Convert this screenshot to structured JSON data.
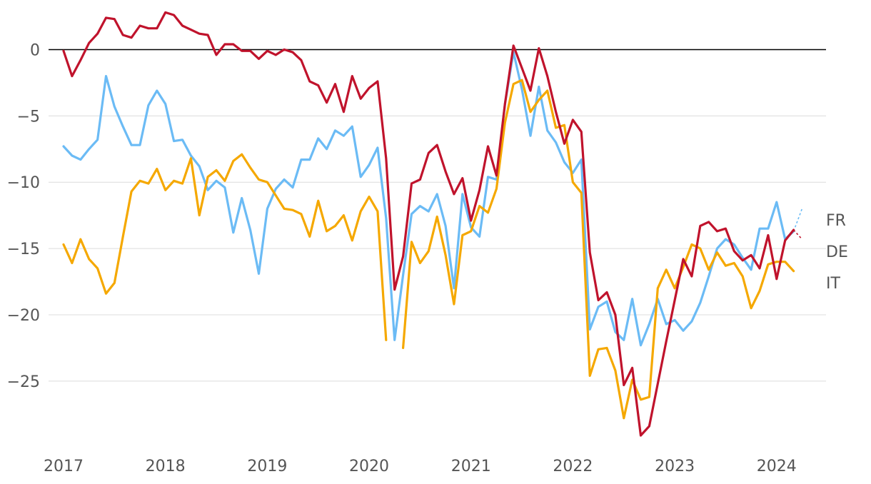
{
  "chart_data": {
    "type": "line",
    "title": "",
    "xlabel": "",
    "ylabel": "",
    "xlim": [
      2017.0,
      2024.42
    ],
    "ylim": [
      -29.8,
      3.2
    ],
    "grid": true,
    "legend": "end-of-line labels",
    "x_ticks": [
      {
        "value": 2017,
        "label": "2017"
      },
      {
        "value": 2018,
        "label": "2018"
      },
      {
        "value": 2019,
        "label": "2019"
      },
      {
        "value": 2020,
        "label": "2020"
      },
      {
        "value": 2021,
        "label": "2021"
      },
      {
        "value": 2022,
        "label": "2022"
      },
      {
        "value": 2023,
        "label": "2023"
      },
      {
        "value": 2024,
        "label": "2024"
      }
    ],
    "y_ticks": [
      {
        "value": 0,
        "label": "0"
      },
      {
        "value": -5,
        "label": "−5"
      },
      {
        "value": -10,
        "label": "−10"
      },
      {
        "value": -15,
        "label": "−15"
      },
      {
        "value": -20,
        "label": "−20"
      },
      {
        "value": -25,
        "label": "−25"
      }
    ],
    "x_start": "2017-01",
    "x_step_months": 1,
    "series": [
      {
        "name": "FR",
        "color": "#6bbbf5",
        "values": [
          -7.3,
          -8.0,
          -8.3,
          -7.5,
          -6.8,
          -2.0,
          -4.3,
          -5.8,
          -7.2,
          -7.2,
          -4.2,
          -3.1,
          -4.1,
          -6.9,
          -6.8,
          -8.0,
          -8.8,
          -10.6,
          -9.9,
          -10.4,
          -13.8,
          -11.2,
          -13.6,
          -16.9,
          -12.0,
          -10.5,
          -9.8,
          -10.4,
          -8.3,
          -8.3,
          -6.7,
          -7.5,
          -6.1,
          -6.5,
          -5.8,
          -9.6,
          -8.7,
          -7.4,
          -12.7,
          -21.9,
          -17.0,
          -12.4,
          -11.8,
          -12.2,
          -10.9,
          -13.3,
          -18.0,
          -10.9,
          -13.4,
          -14.1,
          -9.6,
          -9.8,
          -4.1,
          -0.2,
          -3.0,
          -6.5,
          -2.8,
          -6.1,
          -7.0,
          -8.5,
          -9.3,
          -8.3,
          -21.1,
          -19.4,
          -19.0,
          -21.3,
          -21.9,
          -18.8,
          -22.3,
          -20.7,
          -18.8,
          -20.7,
          -20.4,
          -21.2,
          -20.5,
          -19.1,
          -17.1,
          -15.0,
          -14.3,
          -14.7,
          -15.7,
          -16.6,
          -13.5,
          -13.5,
          -11.5,
          -14.3,
          -13.7
        ],
        "projection": [
          -13.7,
          -12.0
        ]
      },
      {
        "name": "DE",
        "color": "#c0132c",
        "values": [
          -0.1,
          -2.0,
          -0.8,
          0.5,
          1.2,
          2.4,
          2.3,
          1.1,
          0.9,
          1.8,
          1.6,
          1.6,
          2.8,
          2.6,
          1.8,
          1.5,
          1.2,
          1.1,
          -0.4,
          0.4,
          0.4,
          -0.1,
          -0.1,
          -0.7,
          -0.1,
          -0.4,
          0.0,
          -0.2,
          -0.8,
          -2.4,
          -2.7,
          -4.0,
          -2.6,
          -4.7,
          -2.0,
          -3.7,
          -2.9,
          -2.4,
          -8.2,
          -18.1,
          -15.6,
          -10.1,
          -9.8,
          -7.8,
          -7.2,
          -9.2,
          -10.9,
          -9.7,
          -12.9,
          -10.6,
          -7.3,
          -9.5,
          -4.1,
          0.3,
          -1.4,
          -3.1,
          0.1,
          -2.0,
          -4.7,
          -7.1,
          -5.3,
          -6.2,
          -15.3,
          -18.9,
          -18.3,
          -20.0,
          -25.3,
          -24.0,
          -29.1,
          -28.4,
          -25.2,
          -22.0,
          -18.9,
          -15.8,
          -17.1,
          -13.3,
          -13.0,
          -13.7,
          -13.5,
          -15.2,
          -15.9,
          -15.5,
          -16.5,
          -14.0,
          -17.3,
          -14.4,
          -13.6
        ],
        "projection": [
          -13.6,
          -14.3
        ]
      },
      {
        "name": "IT",
        "color": "#f5a800",
        "values": [
          -14.7,
          -16.1,
          -14.3,
          -15.8,
          -16.5,
          -18.4,
          -17.6,
          -14.1,
          -10.7,
          -9.9,
          -10.1,
          -9.0,
          -10.6,
          -9.9,
          -10.1,
          -8.2,
          -12.5,
          -9.6,
          -9.1,
          -9.9,
          -8.4,
          -7.9,
          -8.9,
          -9.8,
          -10.0,
          -11.0,
          -12.0,
          -12.1,
          -12.4,
          -14.1,
          -11.4,
          -13.7,
          -13.3,
          -12.5,
          -14.4,
          -12.2,
          -11.1,
          -12.2,
          -21.9,
          null,
          -22.5,
          -14.5,
          -16.1,
          -15.2,
          -12.6,
          -15.5,
          -19.2,
          -14.0,
          -13.7,
          -11.8,
          -12.3,
          -10.5,
          -5.5,
          -2.6,
          -2.3,
          -4.7,
          -3.8,
          -3.1,
          -5.9,
          -5.7,
          -10.0,
          -10.8,
          -24.6,
          -22.6,
          -22.5,
          -24.2,
          -27.8,
          -24.9,
          -26.4,
          -26.2,
          -18.0,
          -16.6,
          -18.0,
          -16.4,
          -14.7,
          -15.0,
          -16.6,
          -15.3,
          -16.3,
          -16.1,
          -17.1,
          -19.5,
          -18.2,
          -16.2,
          -16.0,
          -16.0,
          -16.7
        ]
      }
    ]
  }
}
